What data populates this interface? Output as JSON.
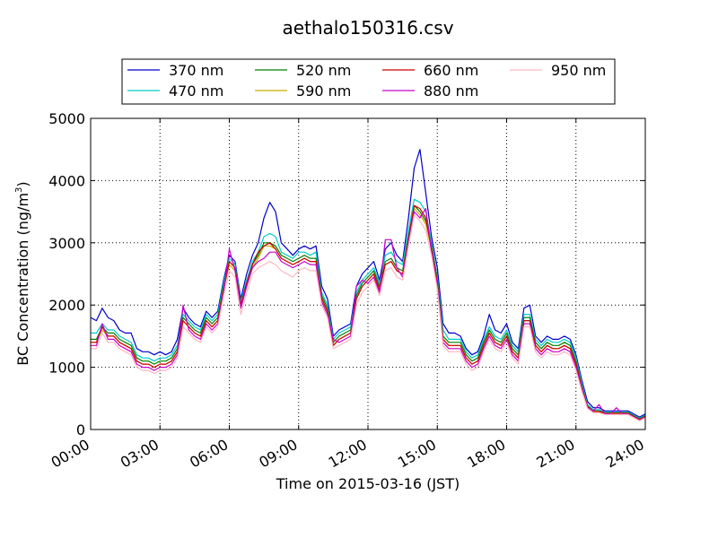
{
  "chart_data": {
    "type": "line",
    "title": "aethalo150316.csv",
    "xlabel": "Time on 2015-03-16 (JST)",
    "ylabel": "BC Concentration (ng/m",
    "ylabel_sup": "3",
    "ylabel_close": ")",
    "xlim": [
      0,
      24
    ],
    "ylim": [
      0,
      5000
    ],
    "grid": true,
    "legend_position": "top",
    "x_ticks": [
      0,
      3,
      6,
      9,
      12,
      15,
      18,
      21,
      24
    ],
    "x_tick_labels": [
      "00:00",
      "03:00",
      "06:00",
      "09:00",
      "12:00",
      "15:00",
      "18:00",
      "21:00",
      "24:00"
    ],
    "y_ticks": [
      0,
      1000,
      2000,
      3000,
      4000,
      5000
    ],
    "y_tick_labels": [
      "0",
      "1000",
      "2000",
      "3000",
      "4000",
      "5000"
    ],
    "x": [
      0,
      0.25,
      0.5,
      0.75,
      1,
      1.25,
      1.5,
      1.75,
      2,
      2.25,
      2.5,
      2.75,
      3,
      3.25,
      3.5,
      3.75,
      4,
      4.25,
      4.5,
      4.75,
      5,
      5.25,
      5.5,
      5.75,
      6,
      6.25,
      6.5,
      6.75,
      7,
      7.25,
      7.5,
      7.75,
      8,
      8.25,
      8.5,
      8.75,
      9,
      9.25,
      9.5,
      9.75,
      10,
      10.25,
      10.5,
      10.75,
      11,
      11.25,
      11.5,
      11.75,
      12,
      12.25,
      12.5,
      12.75,
      13,
      13.25,
      13.5,
      13.75,
      14,
      14.25,
      14.5,
      14.75,
      15,
      15.25,
      15.5,
      15.75,
      16,
      16.25,
      16.5,
      16.75,
      17,
      17.25,
      17.5,
      17.75,
      18,
      18.25,
      18.5,
      18.75,
      19,
      19.25,
      19.5,
      19.75,
      20,
      20.25,
      20.5,
      20.75,
      21,
      21.25,
      21.5,
      21.75,
      22,
      22.25,
      22.5,
      22.75,
      23,
      23.25,
      23.5,
      23.75,
      24
    ],
    "series": [
      {
        "name": "370 nm",
        "color": "#0000cc",
        "values": [
          1800,
          1750,
          1950,
          1800,
          1750,
          1600,
          1550,
          1550,
          1300,
          1250,
          1250,
          1200,
          1250,
          1200,
          1250,
          1450,
          1950,
          1800,
          1700,
          1650,
          1900,
          1800,
          1900,
          2400,
          2800,
          2700,
          2100,
          2500,
          2800,
          3000,
          3400,
          3650,
          3500,
          3000,
          2900,
          2800,
          2900,
          2950,
          2900,
          2950,
          2300,
          2100,
          1500,
          1600,
          1650,
          1700,
          2300,
          2500,
          2600,
          2700,
          2400,
          2900,
          3000,
          2800,
          2700,
          3400,
          4200,
          4500,
          3800,
          3100,
          2600,
          1700,
          1550,
          1550,
          1500,
          1300,
          1200,
          1250,
          1500,
          1850,
          1600,
          1550,
          1700,
          1400,
          1300,
          1950,
          2000,
          1500,
          1400,
          1500,
          1450,
          1450,
          1500,
          1450,
          1200,
          800,
          450,
          350,
          350,
          300,
          300,
          300,
          300,
          300,
          250,
          200,
          250
        ]
      },
      {
        "name": "470 nm",
        "color": "#00cccc",
        "values": [
          1550,
          1550,
          1700,
          1600,
          1600,
          1500,
          1450,
          1400,
          1200,
          1150,
          1150,
          1100,
          1150,
          1150,
          1200,
          1350,
          1850,
          1750,
          1650,
          1600,
          1850,
          1750,
          1850,
          2350,
          2750,
          2650,
          2050,
          2400,
          2700,
          2850,
          3100,
          3150,
          3100,
          2850,
          2800,
          2750,
          2850,
          2850,
          2800,
          2850,
          2200,
          2000,
          1450,
          1550,
          1600,
          1650,
          2200,
          2400,
          2500,
          2600,
          2350,
          2800,
          2850,
          2700,
          2650,
          3200,
          3700,
          3650,
          3500,
          3000,
          2450,
          1600,
          1450,
          1450,
          1450,
          1250,
          1150,
          1200,
          1450,
          1650,
          1500,
          1450,
          1600,
          1350,
          1250,
          1850,
          1850,
          1450,
          1350,
          1450,
          1400,
          1400,
          1450,
          1400,
          1150,
          750,
          400,
          320,
          320,
          280,
          280,
          280,
          280,
          280,
          230,
          180,
          230
        ]
      },
      {
        "name": "520 nm",
        "color": "#008000",
        "values": [
          1450,
          1450,
          1650,
          1550,
          1550,
          1450,
          1400,
          1350,
          1150,
          1100,
          1100,
          1050,
          1100,
          1100,
          1150,
          1300,
          1800,
          1700,
          1600,
          1550,
          1800,
          1700,
          1800,
          2300,
          2700,
          2600,
          2000,
          2350,
          2650,
          2800,
          3000,
          3000,
          2950,
          2800,
          2750,
          2700,
          2750,
          2800,
          2750,
          2750,
          2150,
          1950,
          1400,
          1500,
          1550,
          1600,
          2150,
          2350,
          2450,
          2550,
          2300,
          2700,
          2750,
          2600,
          2550,
          3100,
          3600,
          3500,
          3350,
          2950,
          2400,
          1500,
          1400,
          1400,
          1400,
          1200,
          1100,
          1150,
          1400,
          1600,
          1450,
          1400,
          1550,
          1300,
          1200,
          1800,
          1800,
          1400,
          1300,
          1400,
          1350,
          1350,
          1400,
          1350,
          1100,
          700,
          380,
          300,
          300,
          270,
          270,
          270,
          270,
          270,
          220,
          170,
          220
        ]
      },
      {
        "name": "590 nm",
        "color": "#ccaa00",
        "values": [
          1400,
          1400,
          1600,
          1500,
          1500,
          1400,
          1350,
          1300,
          1100,
          1050,
          1050,
          1000,
          1050,
          1050,
          1100,
          1250,
          1750,
          1650,
          1550,
          1500,
          1750,
          1650,
          1750,
          2250,
          2650,
          2550,
          1950,
          2300,
          2600,
          2750,
          2950,
          2950,
          2900,
          2750,
          2700,
          2650,
          2700,
          2750,
          2700,
          2700,
          2100,
          1900,
          1350,
          1450,
          1500,
          1550,
          2100,
          2300,
          2400,
          2500,
          2250,
          2650,
          2700,
          2550,
          2500,
          3050,
          3550,
          3450,
          3300,
          2900,
          2350,
          1450,
          1350,
          1350,
          1350,
          1150,
          1050,
          1100,
          1350,
          1550,
          1400,
          1350,
          1500,
          1250,
          1150,
          1750,
          1750,
          1350,
          1250,
          1350,
          1300,
          1300,
          1350,
          1300,
          1050,
          680,
          370,
          290,
          290,
          260,
          260,
          260,
          260,
          260,
          210,
          160,
          210
        ]
      },
      {
        "name": "660 nm",
        "color": "#cc0000",
        "values": [
          1400,
          1400,
          1650,
          1500,
          1500,
          1400,
          1350,
          1300,
          1100,
          1050,
          1050,
          1000,
          1050,
          1050,
          1100,
          1250,
          1750,
          1650,
          1550,
          1500,
          1750,
          1650,
          1750,
          2250,
          2700,
          2600,
          2000,
          2350,
          2650,
          2850,
          2950,
          3000,
          2900,
          2750,
          2700,
          2650,
          2700,
          2750,
          2700,
          2700,
          2100,
          1900,
          1350,
          1450,
          1500,
          1550,
          2100,
          2300,
          2400,
          2500,
          2250,
          2650,
          2700,
          2550,
          2500,
          3050,
          3600,
          3550,
          3400,
          2900,
          2350,
          1450,
          1350,
          1350,
          1350,
          1150,
          1050,
          1100,
          1350,
          1550,
          1400,
          1350,
          1500,
          1250,
          1150,
          1750,
          1750,
          1350,
          1250,
          1350,
          1300,
          1300,
          1350,
          1300,
          1050,
          680,
          370,
          290,
          290,
          260,
          260,
          260,
          260,
          260,
          210,
          160,
          210
        ]
      },
      {
        "name": "880 nm",
        "color": "#cc00cc",
        "values": [
          1350,
          1350,
          1700,
          1450,
          1450,
          1350,
          1300,
          1250,
          1050,
          1000,
          1000,
          950,
          1000,
          1000,
          1050,
          1200,
          2000,
          1600,
          1500,
          1450,
          1700,
          1600,
          1700,
          2200,
          2900,
          2550,
          1950,
          2300,
          2600,
          2700,
          2750,
          2850,
          2850,
          2700,
          2650,
          2600,
          2650,
          2700,
          2650,
          2650,
          2050,
          1850,
          1450,
          1400,
          1450,
          1500,
          2300,
          2400,
          2350,
          2450,
          2200,
          3050,
          3050,
          2600,
          2450,
          3000,
          3500,
          3400,
          3550,
          2850,
          2300,
          1400,
          1300,
          1300,
          1300,
          1100,
          1000,
          1050,
          1300,
          1500,
          1350,
          1300,
          1450,
          1200,
          1100,
          1700,
          1700,
          1300,
          1200,
          1300,
          1250,
          1250,
          1300,
          1250,
          1000,
          650,
          350,
          300,
          400,
          250,
          250,
          350,
          250,
          250,
          200,
          150,
          200
        ]
      },
      {
        "name": "950 nm",
        "color": "#ffb6c1",
        "values": [
          1300,
          1300,
          1550,
          1400,
          1400,
          1300,
          1250,
          1200,
          1000,
          950,
          950,
          900,
          950,
          950,
          1000,
          1150,
          1650,
          1550,
          1450,
          1400,
          1650,
          1550,
          1650,
          2150,
          2550,
          2450,
          1850,
          2200,
          2500,
          2600,
          2650,
          2700,
          2650,
          2550,
          2500,
          2450,
          2550,
          2600,
          2550,
          2550,
          2000,
          1800,
          1300,
          1350,
          1400,
          1450,
          2000,
          2200,
          2300,
          2400,
          2150,
          2550,
          2600,
          2450,
          2400,
          2950,
          3450,
          3350,
          3200,
          2800,
          2250,
          1350,
          1250,
          1250,
          1250,
          1050,
          950,
          1000,
          1250,
          1450,
          1300,
          1250,
          1400,
          1150,
          1050,
          1650,
          1650,
          1250,
          1150,
          1250,
          1200,
          1200,
          1250,
          1200,
          950,
          620,
          340,
          270,
          270,
          240,
          240,
          240,
          240,
          240,
          190,
          140,
          190
        ]
      }
    ]
  }
}
